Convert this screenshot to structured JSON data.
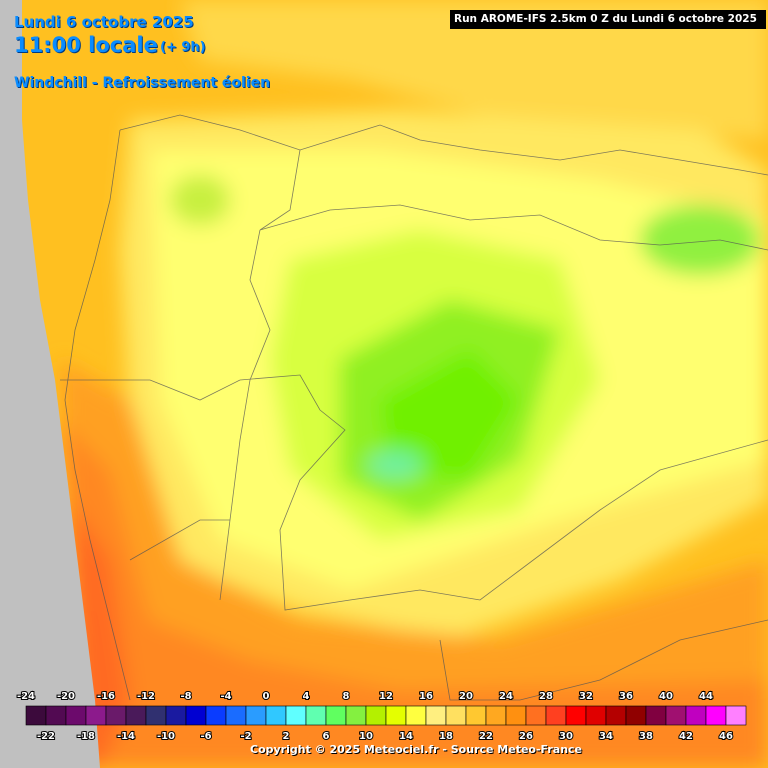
{
  "header": {
    "date": "Lundi 6 octobre 2025",
    "hour": "11:00 locale",
    "lead": "(+ 9h)",
    "field": "Windchill - Refroissement éolien",
    "run": "Run AROME-IFS 2.5km 0 Z du Lundi 6 octobre 2025"
  },
  "footer": {
    "copyright": "Copyright © 2025 Meteociel.fr - Source Meteo-France"
  },
  "legend": {
    "items": [
      {
        "value": -24,
        "color": "#3c0a3c"
      },
      {
        "value": -22,
        "color": "#520a52"
      },
      {
        "value": -20,
        "color": "#6c0a6c"
      },
      {
        "value": -18,
        "color": "#8c1a8c"
      },
      {
        "value": -16,
        "color": "#6a1a6a"
      },
      {
        "value": -14,
        "color": "#4a1a5a"
      },
      {
        "value": -12,
        "color": "#303070"
      },
      {
        "value": -10,
        "color": "#1a1aa0"
      },
      {
        "value": -8,
        "color": "#0000d2"
      },
      {
        "value": -6,
        "color": "#0a3cff"
      },
      {
        "value": -4,
        "color": "#1a6cff"
      },
      {
        "value": -2,
        "color": "#2a9cff"
      },
      {
        "value": 0,
        "color": "#30c8ff"
      },
      {
        "value": 2,
        "color": "#60ffff"
      },
      {
        "value": 4,
        "color": "#60ffb0"
      },
      {
        "value": 6,
        "color": "#60ff60"
      },
      {
        "value": 8,
        "color": "#84f040"
      },
      {
        "value": 10,
        "color": "#b4f000"
      },
      {
        "value": 12,
        "color": "#e4ff00"
      },
      {
        "value": 14,
        "color": "#ffff40"
      },
      {
        "value": 16,
        "color": "#ffef80"
      },
      {
        "value": 18,
        "color": "#ffe060"
      },
      {
        "value": 20,
        "color": "#ffc830"
      },
      {
        "value": 22,
        "color": "#ffa820"
      },
      {
        "value": 24,
        "color": "#ff9010"
      },
      {
        "value": 26,
        "color": "#ff7020"
      },
      {
        "value": 28,
        "color": "#ff4020"
      },
      {
        "value": 30,
        "color": "#ff0000"
      },
      {
        "value": 32,
        "color": "#e00000"
      },
      {
        "value": 34,
        "color": "#b40000"
      },
      {
        "value": 36,
        "color": "#900000"
      },
      {
        "value": 38,
        "color": "#800040"
      },
      {
        "value": 40,
        "color": "#a01070"
      },
      {
        "value": 42,
        "color": "#c000c0"
      },
      {
        "value": 44,
        "color": "#ff00ff"
      },
      {
        "value": 46,
        "color": "#ff80ff"
      }
    ]
  }
}
